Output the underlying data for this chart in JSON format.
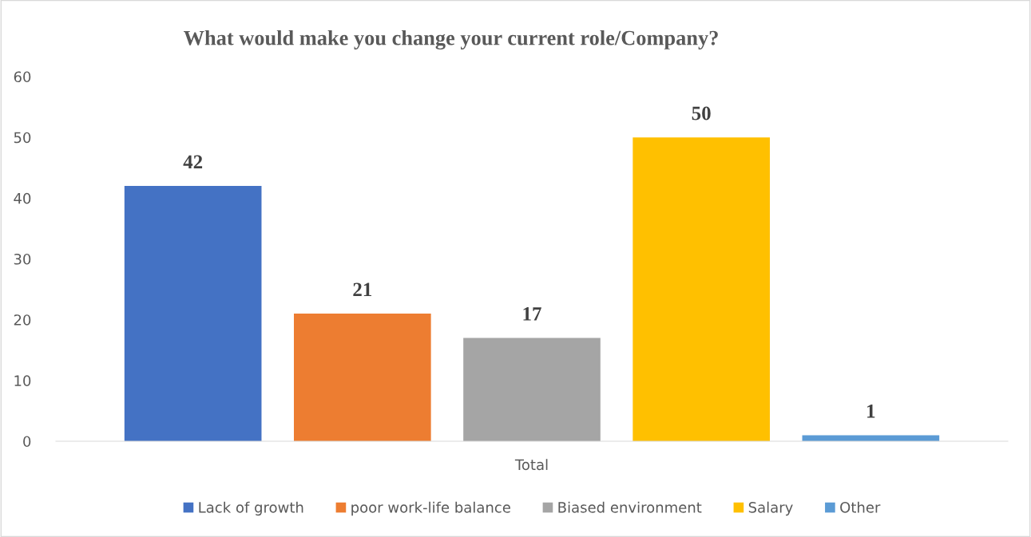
{
  "chart_data": {
    "type": "bar",
    "title": "What would make you change your current role/Company?",
    "categories": [
      "Total"
    ],
    "series": [
      {
        "name": "Lack of growth",
        "color": "#4472c4",
        "values": [
          42
        ]
      },
      {
        "name": "poor work-life balance",
        "color": "#ed7d31",
        "values": [
          21
        ]
      },
      {
        "name": "Biased environment",
        "color": "#a5a5a5",
        "values": [
          17
        ]
      },
      {
        "name": "Salary",
        "color": "#ffc000",
        "values": [
          50
        ]
      },
      {
        "name": "Other",
        "color": "#5b9bd5",
        "values": [
          1
        ]
      }
    ],
    "ylim": [
      0,
      60
    ],
    "yticks": [
      0,
      10,
      20,
      30,
      40,
      50,
      60
    ],
    "grid": false,
    "legend": "bottom",
    "data_labels": true
  }
}
